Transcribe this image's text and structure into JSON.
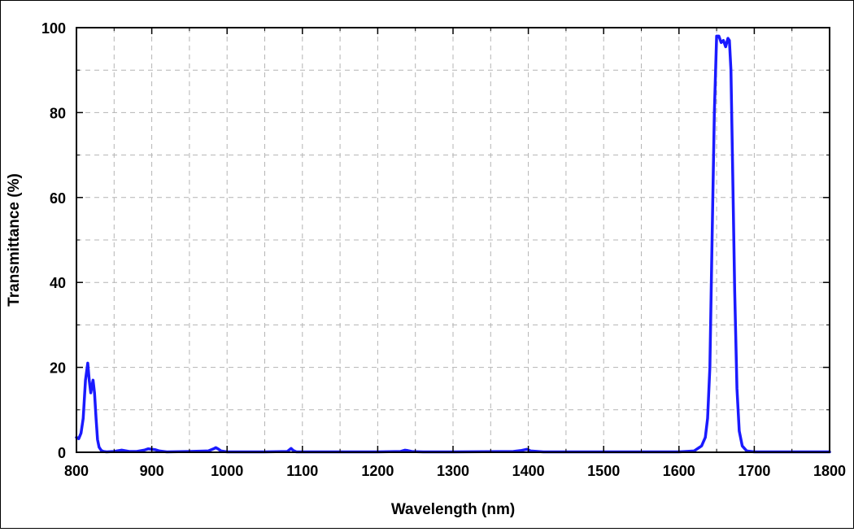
{
  "chart_data": {
    "type": "line",
    "xlabel": "Wavelength (nm)",
    "ylabel": "Transmittance (%)",
    "xlim": [
      800,
      1800
    ],
    "ylim": [
      0,
      100
    ],
    "x_ticks": [
      800,
      900,
      1000,
      1100,
      1200,
      1300,
      1400,
      1500,
      1600,
      1700,
      1800
    ],
    "x_tick_labels": [
      "800",
      "900",
      "1000",
      "1100",
      "1200",
      "1300",
      "1400",
      "1500",
      "1600",
      "1700",
      "1800"
    ],
    "y_ticks": [
      0,
      20,
      40,
      60,
      80,
      100
    ],
    "y_tick_labels": [
      "0",
      "20",
      "40",
      "60",
      "80",
      "100"
    ],
    "grid": true,
    "grid_style": "dashed",
    "line_color": "#1a1aff",
    "series": [
      {
        "x": [
          800,
          803,
          806,
          809,
          812,
          815,
          817,
          819,
          820,
          822,
          824,
          826,
          828,
          830,
          833,
          836,
          840,
          850,
          860,
          870,
          880,
          890,
          895,
          900,
          905,
          910,
          920,
          950,
          975,
          982,
          985,
          988,
          992,
          1000,
          1050,
          1080,
          1085,
          1088,
          1092,
          1100,
          1200,
          1230,
          1236,
          1240,
          1245,
          1260,
          1300,
          1380,
          1390,
          1398,
          1403,
          1420,
          1500,
          1600,
          1620,
          1630,
          1635,
          1638,
          1641,
          1644,
          1647,
          1650,
          1653,
          1656,
          1659,
          1662,
          1665,
          1667,
          1669,
          1671,
          1674,
          1677,
          1680,
          1684,
          1690,
          1700,
          1750,
          1800
        ],
        "y": [
          3.5,
          3.2,
          4.5,
          8,
          17,
          21,
          17,
          14,
          15,
          17,
          14,
          8,
          3,
          1.2,
          0.4,
          0.2,
          0.1,
          0.2,
          0.5,
          0.2,
          0.2,
          0.5,
          0.8,
          0.7,
          0.6,
          0.3,
          0.1,
          0.2,
          0.3,
          0.8,
          1.1,
          0.8,
          0.3,
          0.1,
          0.1,
          0.2,
          0.9,
          0.4,
          0.1,
          0.1,
          0.1,
          0.2,
          0.5,
          0.4,
          0.2,
          0.1,
          0.1,
          0.2,
          0.4,
          0.7,
          0.3,
          0.1,
          0.1,
          0.1,
          0.3,
          1.5,
          3.5,
          8,
          20,
          50,
          80,
          98,
          98,
          96.5,
          97,
          95.5,
          97.5,
          97,
          90,
          70,
          38,
          15,
          5,
          1.5,
          0.3,
          0.1,
          0.1,
          0.1
        ]
      }
    ]
  }
}
